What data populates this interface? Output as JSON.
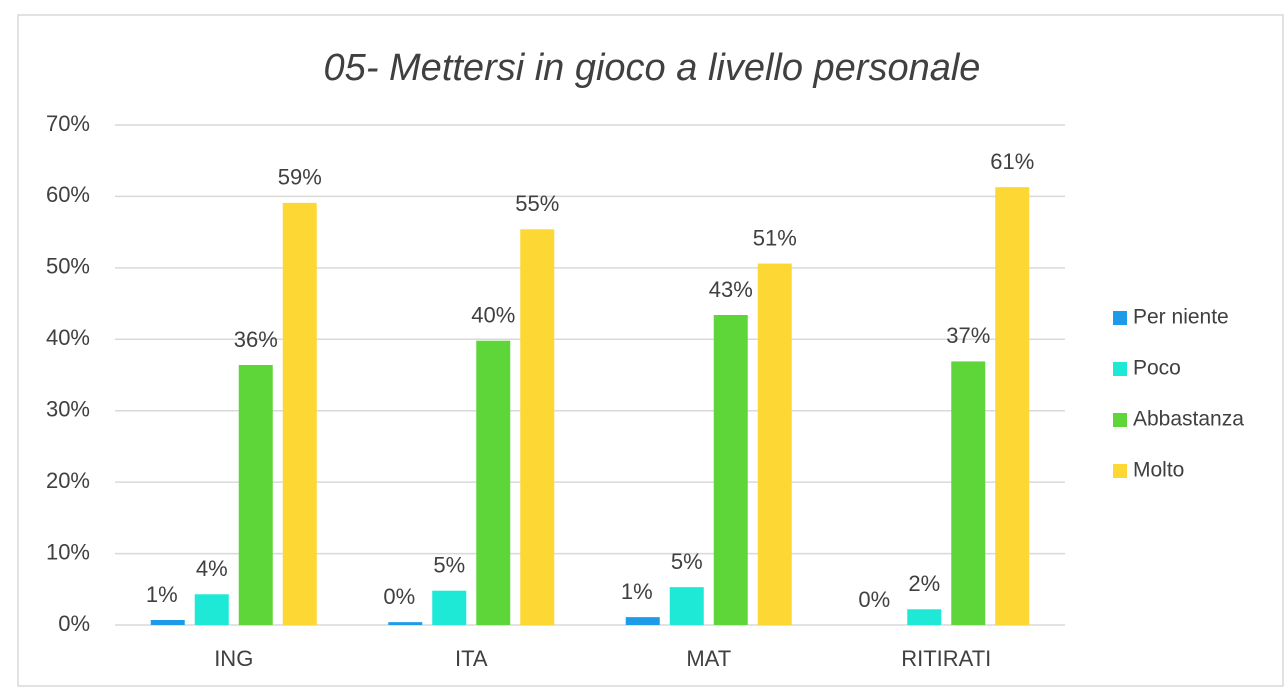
{
  "chart_data": {
    "type": "bar",
    "title": "05- Mettersi in gioco a livello personale",
    "categories": [
      "ING",
      "ITA",
      "MAT",
      "RITIRATI"
    ],
    "series": [
      {
        "name": "Per niente",
        "color": "#1e9be8",
        "values": [
          0.7,
          0.4,
          1.1,
          0
        ],
        "value_labels": [
          "1%",
          "0%",
          "1%",
          "0%"
        ]
      },
      {
        "name": "Poco",
        "color": "#1ee8d6",
        "values": [
          4.3,
          4.8,
          5.3,
          2.2
        ],
        "value_labels": [
          "4%",
          "5%",
          "5%",
          "2%"
        ]
      },
      {
        "name": "Abbastanza",
        "color": "#5ed63a",
        "values": [
          36.4,
          39.8,
          43.4,
          36.9
        ],
        "value_labels": [
          "36%",
          "40%",
          "43%",
          "37%"
        ]
      },
      {
        "name": "Molto",
        "color": "#fdd835",
        "values": [
          59.1,
          55.4,
          50.6,
          61.3
        ],
        "value_labels": [
          "59%",
          "55%",
          "51%",
          "61%"
        ]
      }
    ],
    "ylim": [
      0,
      70
    ],
    "yticks": [
      {
        "value": 0,
        "label": "0%"
      },
      {
        "value": 10,
        "label": "10%"
      },
      {
        "value": 20,
        "label": "20%"
      },
      {
        "value": 30,
        "label": "30%"
      },
      {
        "value": 40,
        "label": "40%"
      },
      {
        "value": 50,
        "label": "50%"
      },
      {
        "value": 60,
        "label": "60%"
      },
      {
        "value": 70,
        "label": "70%"
      }
    ],
    "grid": true,
    "legend": "right"
  }
}
